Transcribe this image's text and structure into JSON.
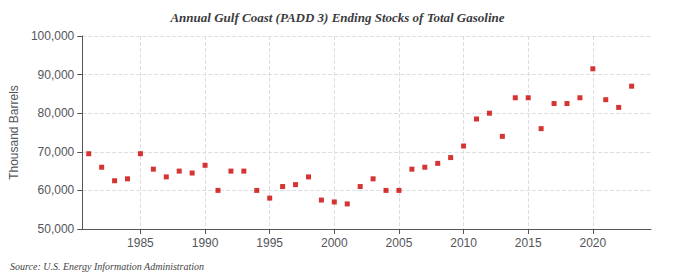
{
  "chart_data": {
    "type": "scatter",
    "title": "Annual Gulf Coast (PADD 3) Ending Stocks of Total Gasoline",
    "ylabel": "Thousand Barrels",
    "annotations": [
      "Source: U.S. Energy Information Administration"
    ],
    "color": "#cc0000",
    "marker": "square",
    "grid": true,
    "xlim": [
      1980.5,
      2024.5
    ],
    "xticks": [
      1985,
      1990,
      1995,
      2000,
      2005,
      2010,
      2015,
      2020
    ],
    "ylim": [
      50000,
      100000
    ],
    "yticks": [
      {
        "value": 50000,
        "label": "50,000"
      },
      {
        "value": 60000,
        "label": "60,000"
      },
      {
        "value": 70000,
        "label": "70,000"
      },
      {
        "value": 80000,
        "label": "80,000"
      },
      {
        "value": 90000,
        "label": "90,000"
      },
      {
        "value": 100000,
        "label": "100,000"
      }
    ],
    "x": [
      1981,
      1982,
      1983,
      1984,
      1985,
      1986,
      1987,
      1988,
      1989,
      1990,
      1991,
      1992,
      1993,
      1994,
      1995,
      1996,
      1997,
      1998,
      1999,
      2000,
      2001,
      2002,
      2003,
      2004,
      2005,
      2006,
      2007,
      2008,
      2009,
      2010,
      2011,
      2012,
      2013,
      2014,
      2015,
      2016,
      2017,
      2018,
      2019,
      2020,
      2021,
      2022,
      2023
    ],
    "values": [
      69500,
      66000,
      62500,
      63000,
      69500,
      65500,
      63500,
      65000,
      64500,
      66500,
      60000,
      65000,
      65000,
      60000,
      58000,
      61000,
      61500,
      63500,
      57500,
      57000,
      56500,
      61000,
      63000,
      60000,
      60000,
      65500,
      66000,
      67000,
      68500,
      71500,
      78500,
      80000,
      74000,
      84000,
      84000,
      76000,
      82500,
      82500,
      84000,
      91500,
      83500,
      81500,
      87000
    ]
  }
}
